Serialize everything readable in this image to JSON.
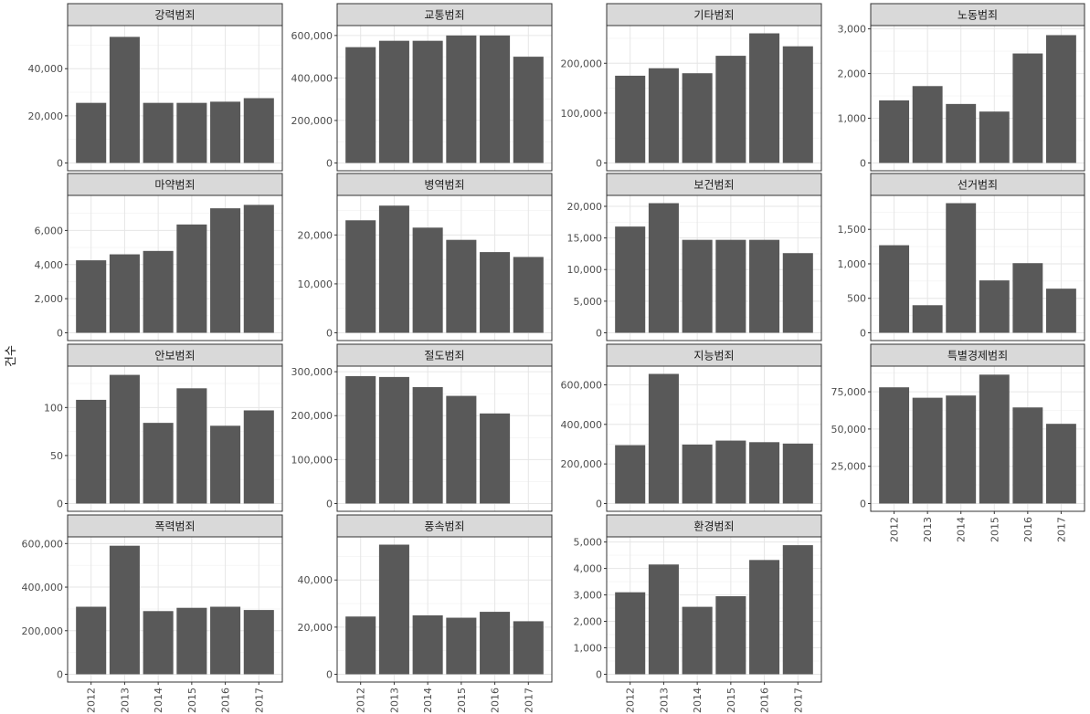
{
  "chart_data": {
    "type": "bar",
    "ylabel": "건수",
    "xlabel": "",
    "categories": [
      "2012",
      "2013",
      "2014",
      "2015",
      "2016",
      "2017"
    ],
    "bar_color": "#595959",
    "strip_color": "#d9d9d9",
    "panels": [
      {
        "name": "강력범죄",
        "ylim": [
          0,
          55000
        ],
        "yticks": [
          0,
          20000,
          40000
        ],
        "ytick_labels": [
          "0",
          "20,000",
          "40,000"
        ],
        "values": [
          25500,
          53500,
          25500,
          25500,
          26000,
          27500
        ]
      },
      {
        "name": "교통범죄",
        "ylim": [
          0,
          610000
        ],
        "yticks": [
          0,
          200000,
          400000,
          600000
        ],
        "ytick_labels": [
          "0",
          "200,000",
          "400,000",
          "600,000"
        ],
        "values": [
          545000,
          575000,
          575000,
          600000,
          600000,
          500000
        ]
      },
      {
        "name": "기타범죄",
        "ylim": [
          0,
          260000
        ],
        "yticks": [
          0,
          100000,
          200000
        ],
        "ytick_labels": [
          "0",
          "100,000",
          "200,000"
        ],
        "values": [
          175000,
          190000,
          180000,
          215000,
          260000,
          234000
        ]
      },
      {
        "name": "노동범죄",
        "ylim": [
          0,
          2900
        ],
        "yticks": [
          0,
          1000,
          2000,
          3000
        ],
        "ytick_labels": [
          "0",
          "1,000",
          "2,000",
          "3,000"
        ],
        "values": [
          1400,
          1720,
          1320,
          1150,
          2450,
          2860
        ]
      },
      {
        "name": "마약범죄",
        "ylim": [
          0,
          7600
        ],
        "yticks": [
          0,
          2000,
          4000,
          6000
        ],
        "ytick_labels": [
          "0",
          "2,000",
          "4,000",
          "6,000"
        ],
        "values": [
          4250,
          4600,
          4800,
          6350,
          7300,
          7500
        ]
      },
      {
        "name": "병역범죄",
        "ylim": [
          0,
          26500
        ],
        "yticks": [
          0,
          10000,
          20000
        ],
        "ytick_labels": [
          "0",
          "10,000",
          "20,000"
        ],
        "values": [
          23000,
          26000,
          21500,
          19000,
          16500,
          15500
        ]
      },
      {
        "name": "보건범죄",
        "ylim": [
          0,
          20500
        ],
        "yticks": [
          0,
          5000,
          10000,
          15000,
          20000
        ],
        "ytick_labels": [
          "0",
          "5,000",
          "10,000",
          "15,000",
          "20,000"
        ],
        "values": [
          16800,
          20500,
          14700,
          14700,
          14700,
          12600
        ]
      },
      {
        "name": "선거범죄",
        "ylim": [
          0,
          1880
        ],
        "yticks": [
          0,
          500,
          1000,
          1500
        ],
        "ytick_labels": [
          "0",
          "500",
          "1,000",
          "1,500"
        ],
        "values": [
          1270,
          400,
          1880,
          760,
          1010,
          640
        ]
      },
      {
        "name": "안보범죄",
        "ylim": [
          0,
          135
        ],
        "yticks": [
          0,
          50,
          100
        ],
        "ytick_labels": [
          "0",
          "50",
          "100"
        ],
        "values": [
          108,
          134,
          84,
          120,
          81,
          97
        ]
      },
      {
        "name": "절도범죄",
        "ylim": [
          0,
          295000
        ],
        "yticks": [
          0,
          100000,
          200000,
          300000
        ],
        "ytick_labels": [
          "0",
          "100,000",
          "200,000",
          "300,000"
        ],
        "values": [
          290000,
          288000,
          265000,
          245000,
          205000,
          0
        ]
      },
      {
        "name": "지능범죄",
        "ylim": [
          0,
          655000
        ],
        "yticks": [
          0,
          200000,
          400000,
          600000
        ],
        "ytick_labels": [
          "0",
          "200,000",
          "400,000",
          "600,000"
        ],
        "values": [
          295000,
          655000,
          298000,
          318000,
          310000,
          303000
        ]
      },
      {
        "name": "특별경제범죄",
        "ylim": [
          0,
          87000
        ],
        "yticks": [
          0,
          25000,
          50000,
          75000
        ],
        "ytick_labels": [
          "0",
          "25,000",
          "50,000",
          "75,000"
        ],
        "values": [
          78000,
          71000,
          72500,
          86500,
          64500,
          53500
        ]
      },
      {
        "name": "폭력범죄",
        "ylim": [
          0,
          595000
        ],
        "yticks": [
          0,
          200000,
          400000,
          600000
        ],
        "ytick_labels": [
          "0",
          "200,000",
          "400,000",
          "600,000"
        ],
        "values": [
          310000,
          590000,
          290000,
          305000,
          310000,
          295000
        ]
      },
      {
        "name": "풍속범죄",
        "ylim": [
          0,
          55000
        ],
        "yticks": [
          0,
          20000,
          40000
        ],
        "ytick_labels": [
          "0",
          "20,000",
          "40,000"
        ],
        "values": [
          24500,
          55000,
          25000,
          24000,
          26500,
          22500
        ]
      },
      {
        "name": "환경범죄",
        "ylim": [
          0,
          4900
        ],
        "yticks": [
          0,
          1000,
          2000,
          3000,
          4000,
          5000
        ],
        "ytick_labels": [
          "0",
          "1,000",
          "2,000",
          "3,000",
          "4,000",
          "5,000"
        ],
        "values": [
          3100,
          4150,
          2550,
          2950,
          4320,
          4880
        ]
      }
    ]
  }
}
